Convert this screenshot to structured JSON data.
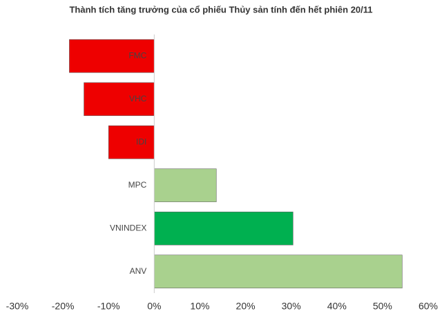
{
  "chart_data": {
    "type": "hbar",
    "title": "Thành tích tăng trưởng của cổ phiếu Thủy sản tính đến hết phiên 20/11",
    "categories": [
      "FMC",
      "VHC",
      "IDI",
      "MPC",
      "VNINDEX",
      "ANV"
    ],
    "values": [
      -18.6,
      -15.4,
      -10.0,
      13.6,
      30.4,
      54.3
    ],
    "colors": [
      "#ee0000",
      "#ee0000",
      "#ee0000",
      "#a9d18e",
      "#00b050",
      "#a9d18e"
    ],
    "xlim": [
      -30,
      60
    ],
    "xticks": [
      {
        "value": -30,
        "label": "-30%"
      },
      {
        "value": -20,
        "label": "-20%"
      },
      {
        "value": -10,
        "label": "-10%"
      },
      {
        "value": 0,
        "label": "0%"
      },
      {
        "value": 10,
        "label": "10%"
      },
      {
        "value": 20,
        "label": "20%"
      },
      {
        "value": 30,
        "label": "30%"
      },
      {
        "value": 40,
        "label": "40%"
      },
      {
        "value": 50,
        "label": "50%"
      },
      {
        "value": 60,
        "label": "60%"
      }
    ],
    "grid": false
  }
}
